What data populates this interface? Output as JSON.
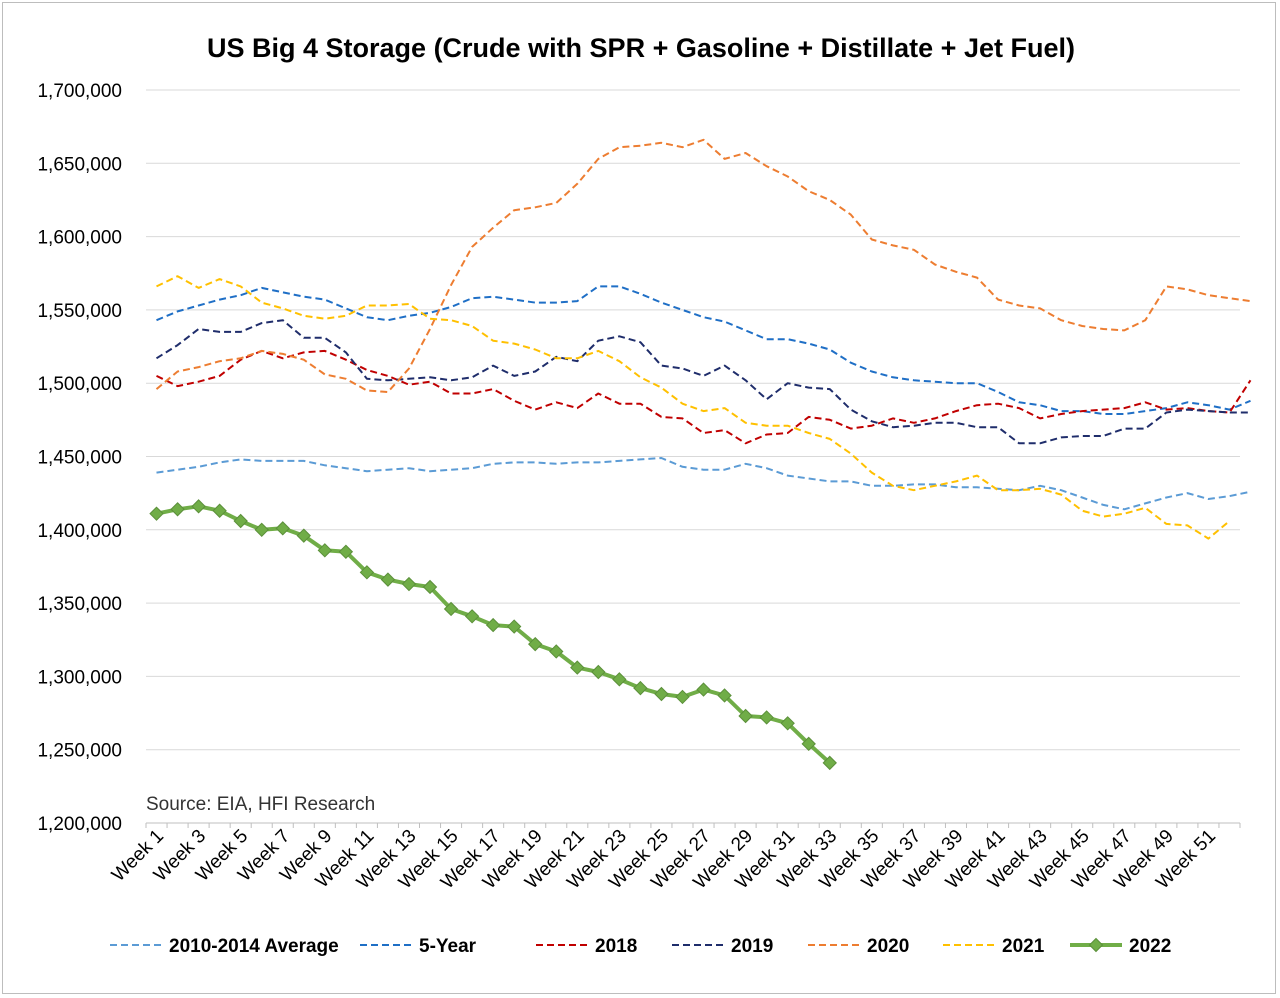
{
  "chart_data": {
    "type": "line",
    "title": "US Big 4 Storage (Crude with SPR + Gasoline + Distillate + Jet Fuel)",
    "source": "Source: EIA, HFI Research",
    "xlabel": "",
    "ylabel": "",
    "ylim": [
      1200000,
      1700000
    ],
    "y_ticks": [
      1200000,
      1250000,
      1300000,
      1350000,
      1400000,
      1450000,
      1500000,
      1550000,
      1600000,
      1650000,
      1700000
    ],
    "y_tick_labels": [
      "1,200,000",
      "1,250,000",
      "1,300,000",
      "1,350,000",
      "1,400,000",
      "1,450,000",
      "1,500,000",
      "1,550,000",
      "1,600,000",
      "1,650,000",
      "1,700,000"
    ],
    "x_tick_labels": [
      "Week 1",
      "Week 3",
      "Week 5",
      "Week 7",
      "Week 9",
      "Week 11",
      "Week 13",
      "Week 15",
      "Week 17",
      "Week 19",
      "Week 21",
      "Week 23",
      "Week 25",
      "Week 27",
      "Week 29",
      "Week 31",
      "Week 33",
      "Week 35",
      "Week 37",
      "Week 39",
      "Week 41",
      "Week 43",
      "Week 45",
      "Week 47",
      "Week 49",
      "Week 51"
    ],
    "x_tick_weeks": [
      1,
      3,
      5,
      7,
      9,
      11,
      13,
      15,
      17,
      19,
      21,
      23,
      25,
      27,
      29,
      31,
      33,
      35,
      37,
      39,
      41,
      43,
      45,
      47,
      49,
      51
    ],
    "weeks": 52,
    "grid": true,
    "legend_position": "bottom",
    "series": [
      {
        "name": "2010-2014 Average",
        "color": "#5b9bd5",
        "style": "dashed",
        "values": [
          1439000,
          1441000,
          1443000,
          1446000,
          1448000,
          1447000,
          1447000,
          1447000,
          1444000,
          1442000,
          1440000,
          1441000,
          1442000,
          1440000,
          1441000,
          1442000,
          1445000,
          1446000,
          1446000,
          1445000,
          1446000,
          1446000,
          1447000,
          1448000,
          1449000,
          1443000,
          1441000,
          1441000,
          1445000,
          1442000,
          1437000,
          1435000,
          1433000,
          1433000,
          1430000,
          1430000,
          1431000,
          1431000,
          1429000,
          1429000,
          1428000,
          1427000,
          1430000,
          1427000,
          1422000,
          1417000,
          1414000,
          1418000,
          1422000,
          1425000,
          1421000,
          1423000,
          1426000
        ]
      },
      {
        "name": "5-Year",
        "color": "#1f6fc6",
        "style": "dashed",
        "values": [
          1543000,
          1549000,
          1553000,
          1557000,
          1560000,
          1565000,
          1562000,
          1559000,
          1557000,
          1551000,
          1545000,
          1543000,
          1546000,
          1548000,
          1552000,
          1558000,
          1559000,
          1557000,
          1555000,
          1555000,
          1556000,
          1566000,
          1566000,
          1561000,
          1555000,
          1550000,
          1545000,
          1542000,
          1536000,
          1530000,
          1530000,
          1527000,
          1523000,
          1514000,
          1508000,
          1504000,
          1502000,
          1501000,
          1500000,
          1500000,
          1494000,
          1487000,
          1485000,
          1481000,
          1481000,
          1479000,
          1479000,
          1481000,
          1483000,
          1487000,
          1485000,
          1482000,
          1488000
        ]
      },
      {
        "name": "2018",
        "color": "#c00000",
        "style": "dashed",
        "values": [
          1505000,
          1498000,
          1501000,
          1505000,
          1516000,
          1522000,
          1517000,
          1521000,
          1522000,
          1516000,
          1509000,
          1505000,
          1499000,
          1501000,
          1493000,
          1493000,
          1496000,
          1488000,
          1482000,
          1487000,
          1483000,
          1493000,
          1486000,
          1486000,
          1477000,
          1476000,
          1466000,
          1468000,
          1459000,
          1465000,
          1466000,
          1477000,
          1475000,
          1469000,
          1471000,
          1476000,
          1473000,
          1476000,
          1481000,
          1485000,
          1486000,
          1483000,
          1476000,
          1479000,
          1481000,
          1482000,
          1483000,
          1487000,
          1482000,
          1483000,
          1481000,
          1480000,
          1502000
        ]
      },
      {
        "name": "2019",
        "color": "#1f2d6b",
        "style": "dashed",
        "values": [
          1517000,
          1526000,
          1537000,
          1535000,
          1535000,
          1541000,
          1543000,
          1531000,
          1531000,
          1521000,
          1503000,
          1502000,
          1503000,
          1504000,
          1502000,
          1504000,
          1512000,
          1505000,
          1508000,
          1518000,
          1515000,
          1529000,
          1532000,
          1528000,
          1512000,
          1510000,
          1505000,
          1512000,
          1502000,
          1489000,
          1500000,
          1497000,
          1496000,
          1482000,
          1474000,
          1470000,
          1471000,
          1473000,
          1473000,
          1470000,
          1470000,
          1459000,
          1459000,
          1463000,
          1464000,
          1464000,
          1469000,
          1469000,
          1480000,
          1482000,
          1481000,
          1480000,
          1480000
        ]
      },
      {
        "name": "2020",
        "color": "#ed7d31",
        "style": "dashed",
        "values": [
          1496000,
          1508000,
          1511000,
          1515000,
          1517000,
          1522000,
          1520000,
          1516000,
          1506000,
          1503000,
          1495000,
          1494000,
          1510000,
          1537000,
          1567000,
          1593000,
          1606000,
          1618000,
          1620000,
          1623000,
          1636000,
          1653000,
          1661000,
          1662000,
          1664000,
          1661000,
          1666000,
          1653000,
          1657000,
          1648000,
          1641000,
          1631000,
          1625000,
          1615000,
          1598000,
          1594000,
          1591000,
          1581000,
          1576000,
          1572000,
          1557000,
          1553000,
          1551000,
          1543000,
          1539000,
          1537000,
          1536000,
          1543000,
          1566000,
          1564000,
          1560000,
          1558000,
          1556000
        ]
      },
      {
        "name": "2021",
        "color": "#ffc000",
        "style": "dashed",
        "values": [
          1566000,
          1573000,
          1565000,
          1571000,
          1566000,
          1555000,
          1551000,
          1546000,
          1544000,
          1546000,
          1553000,
          1553000,
          1554000,
          1544000,
          1543000,
          1539000,
          1529000,
          1527000,
          1523000,
          1517000,
          1517000,
          1522000,
          1515000,
          1504000,
          1497000,
          1486000,
          1481000,
          1483000,
          1473000,
          1471000,
          1471000,
          1466000,
          1462000,
          1452000,
          1439000,
          1430000,
          1427000,
          1430000,
          1433000,
          1437000,
          1427000,
          1427000,
          1428000,
          1424000,
          1413000,
          1409000,
          1411000,
          1415000,
          1404000,
          1403000,
          1394000,
          1406000
        ]
      },
      {
        "name": "2022",
        "color": "#70ad47",
        "style": "solid-diamond",
        "values": [
          1411000,
          1414000,
          1416000,
          1413000,
          1406000,
          1400000,
          1401000,
          1396000,
          1386000,
          1385000,
          1371000,
          1366000,
          1363000,
          1361000,
          1346000,
          1341000,
          1335000,
          1334000,
          1322000,
          1317000,
          1306000,
          1303000,
          1298000,
          1292000,
          1288000,
          1286000,
          1291000,
          1287000,
          1273000,
          1272000,
          1268000,
          1254000,
          1241000
        ]
      }
    ]
  }
}
